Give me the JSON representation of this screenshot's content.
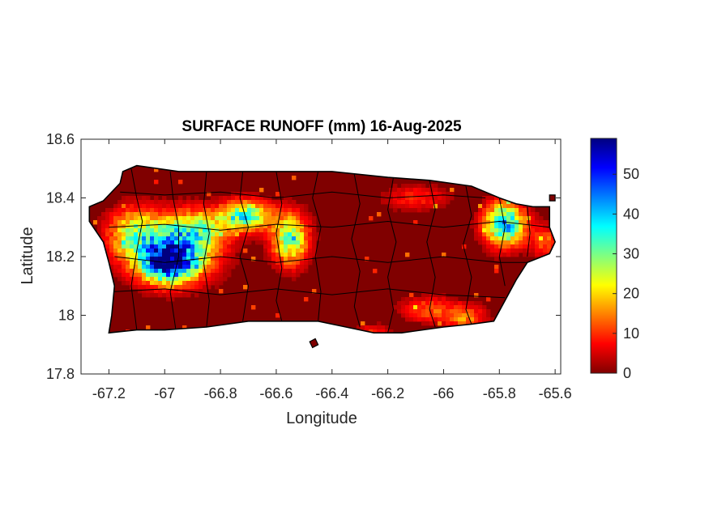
{
  "chart_data": {
    "type": "heatmap",
    "title": "SURFACE RUNOFF (mm) 16-Aug-2025",
    "xlabel": "Longitude",
    "ylabel": "Latitude",
    "xlim": [
      -67.3,
      -65.58
    ],
    "ylim": [
      17.8,
      18.6
    ],
    "xticks": [
      -67.2,
      -67,
      -66.8,
      -66.6,
      -66.4,
      -66.2,
      -66,
      -65.8,
      -65.6
    ],
    "xtick_labels": [
      "-67.2",
      "-67",
      "-66.8",
      "-66.6",
      "-66.4",
      "-66.2",
      "-66",
      "-65.8",
      "-65.6"
    ],
    "yticks": [
      17.8,
      18,
      18.2,
      18.4,
      18.6
    ],
    "ytick_labels": [
      "17.8",
      "18",
      "18.2",
      "18.4",
      "18.6"
    ],
    "colormap": "jet",
    "colorbar": {
      "range": [
        0,
        59
      ],
      "ticks": [
        0,
        10,
        20,
        30,
        40,
        50
      ],
      "tick_labels": [
        "0",
        "10",
        "20",
        "30",
        "40",
        "50"
      ]
    },
    "background_value_color": "#800000",
    "hotspots": [
      {
        "lon": -66.97,
        "lat": 18.23,
        "value": 42,
        "sigma_lon": 0.1,
        "sigma_lat": 0.07
      },
      {
        "lon": -66.99,
        "lat": 18.17,
        "value": 38,
        "sigma_lon": 0.06,
        "sigma_lat": 0.04
      },
      {
        "lon": -66.71,
        "lat": 18.34,
        "value": 34,
        "sigma_lon": 0.06,
        "sigma_lat": 0.035
      },
      {
        "lon": -66.55,
        "lat": 18.26,
        "value": 30,
        "sigma_lon": 0.045,
        "sigma_lat": 0.06
      },
      {
        "lon": -65.78,
        "lat": 18.31,
        "value": 40,
        "sigma_lon": 0.05,
        "sigma_lat": 0.05
      },
      {
        "lon": -67.12,
        "lat": 18.28,
        "value": 18,
        "sigma_lon": 0.06,
        "sigma_lat": 0.06
      },
      {
        "lon": -66.86,
        "lat": 18.3,
        "value": 16,
        "sigma_lon": 0.06,
        "sigma_lat": 0.04
      },
      {
        "lon": -66.05,
        "lat": 18.02,
        "value": 12,
        "sigma_lon": 0.07,
        "sigma_lat": 0.03
      },
      {
        "lon": -65.92,
        "lat": 17.99,
        "value": 14,
        "sigma_lon": 0.05,
        "sigma_lat": 0.03
      },
      {
        "lon": -66.1,
        "lat": 18.4,
        "value": 9,
        "sigma_lon": 0.08,
        "sigma_lat": 0.03
      },
      {
        "lon": -65.63,
        "lat": 18.25,
        "value": 12,
        "sigma_lon": 0.04,
        "sigma_lat": 0.04
      },
      {
        "lon": -66.25,
        "lat": 17.94,
        "value": 10,
        "sigma_lon": 0.04,
        "sigma_lat": 0.02
      }
    ],
    "island_outline": [
      [
        -67.27,
        18.37
      ],
      [
        -67.22,
        18.39
      ],
      [
        -67.16,
        18.45
      ],
      [
        -67.15,
        18.49
      ],
      [
        -67.1,
        18.51
      ],
      [
        -66.95,
        18.49
      ],
      [
        -66.8,
        18.49
      ],
      [
        -66.6,
        18.49
      ],
      [
        -66.4,
        18.49
      ],
      [
        -66.2,
        18.47
      ],
      [
        -66.05,
        18.46
      ],
      [
        -65.9,
        18.44
      ],
      [
        -65.8,
        18.4
      ],
      [
        -65.74,
        18.38
      ],
      [
        -65.68,
        18.37
      ],
      [
        -65.62,
        18.37
      ],
      [
        -65.62,
        18.3
      ],
      [
        -65.6,
        18.25
      ],
      [
        -65.62,
        18.21
      ],
      [
        -65.7,
        18.18
      ],
      [
        -65.74,
        18.12
      ],
      [
        -65.78,
        18.05
      ],
      [
        -65.82,
        17.98
      ],
      [
        -65.9,
        17.97
      ],
      [
        -66.0,
        17.96
      ],
      [
        -66.15,
        17.94
      ],
      [
        -66.25,
        17.94
      ],
      [
        -66.35,
        17.96
      ],
      [
        -66.45,
        17.98
      ],
      [
        -66.55,
        17.98
      ],
      [
        -66.7,
        17.98
      ],
      [
        -66.85,
        17.96
      ],
      [
        -67.0,
        17.95
      ],
      [
        -67.1,
        17.95
      ],
      [
        -67.2,
        17.94
      ],
      [
        -67.19,
        18.0
      ],
      [
        -67.18,
        18.1
      ],
      [
        -67.2,
        18.18
      ],
      [
        -67.22,
        18.25
      ],
      [
        -67.27,
        18.32
      ]
    ],
    "small_islands": [
      [
        [
          -66.48,
          17.91
        ],
        [
          -66.46,
          17.92
        ],
        [
          -66.45,
          17.9
        ],
        [
          -66.47,
          17.89
        ]
      ],
      [
        [
          -65.62,
          18.41
        ],
        [
          -65.6,
          18.41
        ],
        [
          -65.6,
          18.39
        ],
        [
          -65.62,
          18.39
        ]
      ]
    ],
    "municipal_boundaries": [
      [
        [
          -67.12,
          18.5
        ],
        [
          -67.1,
          18.4
        ],
        [
          -67.08,
          18.32
        ],
        [
          -67.1,
          18.22
        ],
        [
          -67.12,
          18.1
        ],
        [
          -67.1,
          17.95
        ]
      ],
      [
        [
          -66.98,
          18.49
        ],
        [
          -66.97,
          18.4
        ],
        [
          -66.95,
          18.3
        ],
        [
          -66.95,
          18.2
        ],
        [
          -66.98,
          18.08
        ],
        [
          -66.96,
          17.95
        ]
      ],
      [
        [
          -66.85,
          18.49
        ],
        [
          -66.86,
          18.38
        ],
        [
          -66.84,
          18.28
        ],
        [
          -66.86,
          18.18
        ],
        [
          -66.84,
          18.05
        ],
        [
          -66.85,
          17.96
        ]
      ],
      [
        [
          -66.72,
          18.49
        ],
        [
          -66.73,
          18.4
        ],
        [
          -66.7,
          18.3
        ],
        [
          -66.73,
          18.2
        ],
        [
          -66.7,
          18.1
        ],
        [
          -66.72,
          17.98
        ]
      ],
      [
        [
          -66.6,
          18.49
        ],
        [
          -66.58,
          18.38
        ],
        [
          -66.6,
          18.28
        ],
        [
          -66.58,
          18.16
        ],
        [
          -66.6,
          18.05
        ],
        [
          -66.58,
          17.98
        ]
      ],
      [
        [
          -66.45,
          18.49
        ],
        [
          -66.47,
          18.4
        ],
        [
          -66.44,
          18.3
        ],
        [
          -66.46,
          18.2
        ],
        [
          -66.44,
          18.08
        ],
        [
          -66.45,
          17.98
        ]
      ],
      [
        [
          -66.32,
          18.48
        ],
        [
          -66.3,
          18.38
        ],
        [
          -66.33,
          18.26
        ],
        [
          -66.3,
          18.15
        ],
        [
          -66.32,
          18.03
        ],
        [
          -66.3,
          17.96
        ]
      ],
      [
        [
          -66.18,
          18.47
        ],
        [
          -66.2,
          18.36
        ],
        [
          -66.17,
          18.25
        ],
        [
          -66.2,
          18.13
        ],
        [
          -66.18,
          18.02
        ],
        [
          -66.2,
          17.94
        ]
      ],
      [
        [
          -66.05,
          18.46
        ],
        [
          -66.03,
          18.36
        ],
        [
          -66.06,
          18.25
        ],
        [
          -66.03,
          18.13
        ],
        [
          -66.05,
          18.02
        ],
        [
          -66.03,
          17.96
        ]
      ],
      [
        [
          -65.92,
          18.44
        ],
        [
          -65.9,
          18.34
        ],
        [
          -65.93,
          18.24
        ],
        [
          -65.9,
          18.13
        ],
        [
          -65.92,
          18.02
        ],
        [
          -65.9,
          17.97
        ]
      ],
      [
        [
          -65.8,
          18.4
        ],
        [
          -65.78,
          18.3
        ],
        [
          -65.8,
          18.2
        ],
        [
          -65.78,
          18.1
        ]
      ],
      [
        [
          -65.7,
          18.37
        ],
        [
          -65.69,
          18.28
        ],
        [
          -65.7,
          18.2
        ]
      ],
      [
        [
          -67.2,
          18.3
        ],
        [
          -67.0,
          18.31
        ],
        [
          -66.8,
          18.29
        ],
        [
          -66.6,
          18.31
        ],
        [
          -66.4,
          18.3
        ],
        [
          -66.2,
          18.32
        ],
        [
          -66.0,
          18.3
        ],
        [
          -65.8,
          18.32
        ],
        [
          -65.62,
          18.3
        ]
      ],
      [
        [
          -67.18,
          18.2
        ],
        [
          -67.0,
          18.18
        ],
        [
          -66.8,
          18.2
        ],
        [
          -66.6,
          18.18
        ],
        [
          -66.4,
          18.2
        ],
        [
          -66.2,
          18.18
        ],
        [
          -66.0,
          18.2
        ],
        [
          -65.8,
          18.18
        ],
        [
          -65.7,
          18.18
        ]
      ],
      [
        [
          -67.19,
          18.08
        ],
        [
          -67.0,
          18.09
        ],
        [
          -66.8,
          18.07
        ],
        [
          -66.6,
          18.09
        ],
        [
          -66.4,
          18.07
        ],
        [
          -66.2,
          18.09
        ],
        [
          -66.0,
          18.07
        ],
        [
          -65.78,
          18.06
        ]
      ],
      [
        [
          -67.16,
          18.42
        ],
        [
          -67.0,
          18.41
        ],
        [
          -66.8,
          18.42
        ],
        [
          -66.6,
          18.4
        ],
        [
          -66.4,
          18.42
        ],
        [
          -66.2,
          18.4
        ],
        [
          -66.0,
          18.41
        ],
        [
          -65.85,
          18.4
        ]
      ]
    ]
  }
}
